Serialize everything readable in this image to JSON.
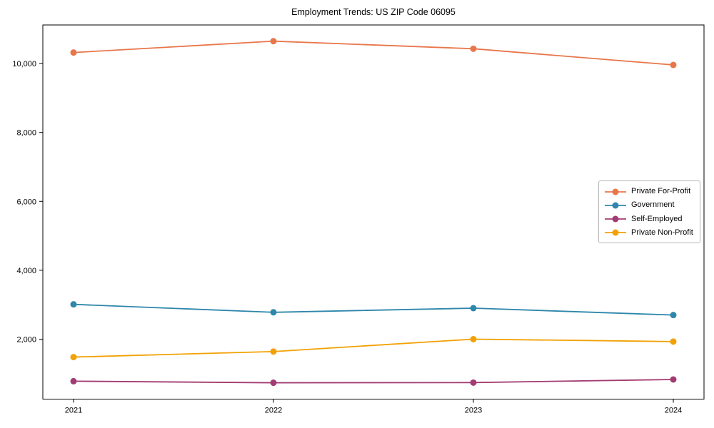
{
  "figure": {
    "background": "#ffffff",
    "text_color": "#000000",
    "spine_color": "#000000"
  },
  "chart_data": {
    "type": "line",
    "title": "Employment Trends: US ZIP Code 06095",
    "xlabel": "",
    "ylabel": "",
    "categories": [
      "2021",
      "2022",
      "2023",
      "2024"
    ],
    "series": [
      {
        "name": "Private For-Profit",
        "color": "#E8764B",
        "values": [
          10320,
          10650,
          10430,
          9960
        ]
      },
      {
        "name": "Government",
        "color": "#2E86AB",
        "values": [
          3010,
          2780,
          2900,
          2700
        ]
      },
      {
        "name": "Self-Employed",
        "color": "#A23B72",
        "values": [
          780,
          735,
          740,
          830
        ]
      },
      {
        "name": "Private Non-Profit",
        "color": "#F2A104",
        "values": [
          1480,
          1640,
          2000,
          1930
        ]
      }
    ],
    "ylim": [
      260,
      11120
    ],
    "yticks": [
      2000,
      4000,
      6000,
      8000,
      10000
    ],
    "ytick_labels": [
      "2,000",
      "4,000",
      "6,000",
      "8,000",
      "10,000"
    ],
    "grid": false,
    "legend_position": "center right",
    "marker": "circle",
    "line_width": 1.8,
    "marker_radius": 4.5
  }
}
